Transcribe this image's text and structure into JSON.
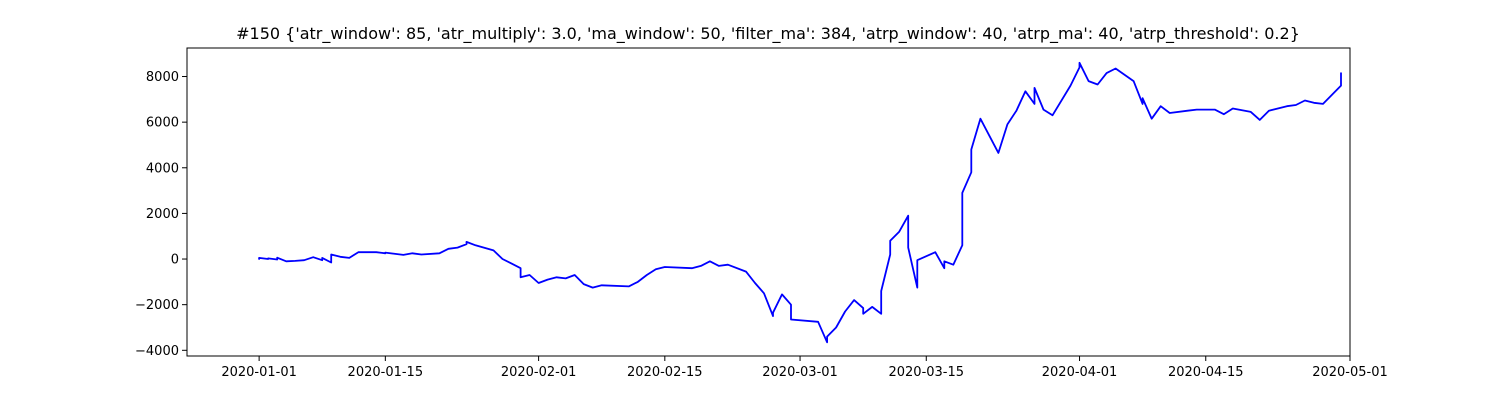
{
  "chart_data": {
    "type": "line",
    "title": "#150 {'atr_window': 85, 'atr_multiply': 3.0, 'ma_window': 50, 'filter_ma': 384, 'atrp_window': 40, 'atrp_ma': 40, 'atrp_threshold': 0.2}",
    "xlabel": "",
    "ylabel": "",
    "x_axis_type": "date",
    "xlim": [
      "2019-12-24",
      "2020-05-01"
    ],
    "ylim": [
      -4250,
      9250
    ],
    "x_ticks": [
      "2020-01-01",
      "2020-01-15",
      "2020-02-01",
      "2020-02-15",
      "2020-03-01",
      "2020-03-15",
      "2020-04-01",
      "2020-04-15",
      "2020-05-01"
    ],
    "y_ticks": [
      -4000,
      -2000,
      0,
      2000,
      4000,
      6000,
      8000
    ],
    "grid": false,
    "legend": "none",
    "series": [
      {
        "color": "#0000ff",
        "points": [
          [
            "2020-01-01",
            0
          ],
          [
            "2020-01-01",
            50
          ],
          [
            "2020-01-02",
            0
          ],
          [
            "2020-01-02",
            30
          ],
          [
            "2020-01-03",
            -20
          ],
          [
            "2020-01-03",
            60
          ],
          [
            "2020-01-04",
            -100
          ],
          [
            "2020-01-05",
            -80
          ],
          [
            "2020-01-06",
            -50
          ],
          [
            "2020-01-07",
            80
          ],
          [
            "2020-01-08",
            -50
          ],
          [
            "2020-01-08",
            50
          ],
          [
            "2020-01-09",
            -150
          ],
          [
            "2020-01-09",
            200
          ],
          [
            "2020-01-10",
            100
          ],
          [
            "2020-01-11",
            50
          ],
          [
            "2020-01-12",
            300
          ],
          [
            "2020-01-14",
            300
          ],
          [
            "2020-01-15",
            250
          ],
          [
            "2020-01-15",
            280
          ],
          [
            "2020-01-17",
            180
          ],
          [
            "2020-01-18",
            250
          ],
          [
            "2020-01-19",
            200
          ],
          [
            "2020-01-21",
            250
          ],
          [
            "2020-01-22",
            450
          ],
          [
            "2020-01-23",
            500
          ],
          [
            "2020-01-24",
            650
          ],
          [
            "2020-01-24",
            750
          ],
          [
            "2020-01-25",
            600
          ],
          [
            "2020-01-27",
            380
          ],
          [
            "2020-01-28",
            0
          ],
          [
            "2020-01-29",
            -200
          ],
          [
            "2020-01-30",
            -400
          ],
          [
            "2020-01-30",
            -800
          ],
          [
            "2020-01-31",
            -700
          ],
          [
            "2020-02-01",
            -1050
          ],
          [
            "2020-02-02",
            -900
          ],
          [
            "2020-02-03",
            -800
          ],
          [
            "2020-02-04",
            -850
          ],
          [
            "2020-02-05",
            -700
          ],
          [
            "2020-02-06",
            -1100
          ],
          [
            "2020-02-07",
            -1250
          ],
          [
            "2020-02-08",
            -1150
          ],
          [
            "2020-02-11",
            -1200
          ],
          [
            "2020-02-12",
            -1000
          ],
          [
            "2020-02-13",
            -700
          ],
          [
            "2020-02-14",
            -450
          ],
          [
            "2020-02-15",
            -350
          ],
          [
            "2020-02-18",
            -400
          ],
          [
            "2020-02-19",
            -300
          ],
          [
            "2020-02-20",
            -100
          ],
          [
            "2020-02-21",
            -300
          ],
          [
            "2020-02-22",
            -250
          ],
          [
            "2020-02-24",
            -550
          ],
          [
            "2020-02-25",
            -1050
          ],
          [
            "2020-02-26",
            -1500
          ],
          [
            "2020-02-27",
            -2500
          ],
          [
            "2020-02-27",
            -2350
          ],
          [
            "2020-02-28",
            -1550
          ],
          [
            "2020-02-29",
            -2000
          ],
          [
            "2020-02-29",
            -2650
          ],
          [
            "2020-03-03",
            -2750
          ],
          [
            "2020-03-04",
            -3650
          ],
          [
            "2020-03-04",
            -3400
          ],
          [
            "2020-03-05",
            -3000
          ],
          [
            "2020-03-06",
            -2300
          ],
          [
            "2020-03-07",
            -1800
          ],
          [
            "2020-03-08",
            -2150
          ],
          [
            "2020-03-08",
            -2400
          ],
          [
            "2020-03-09",
            -2100
          ],
          [
            "2020-03-10",
            -2400
          ],
          [
            "2020-03-10",
            -1400
          ],
          [
            "2020-03-11",
            200
          ],
          [
            "2020-03-11",
            800
          ],
          [
            "2020-03-12",
            1200
          ],
          [
            "2020-03-13",
            1900
          ],
          [
            "2020-03-13",
            500
          ],
          [
            "2020-03-14",
            -1250
          ],
          [
            "2020-03-14",
            -50
          ],
          [
            "2020-03-16",
            300
          ],
          [
            "2020-03-17",
            -400
          ],
          [
            "2020-03-17",
            -100
          ],
          [
            "2020-03-18",
            -250
          ],
          [
            "2020-03-19",
            600
          ],
          [
            "2020-03-19",
            2900
          ],
          [
            "2020-03-20",
            3800
          ],
          [
            "2020-03-20",
            4800
          ],
          [
            "2020-03-21",
            6150
          ],
          [
            "2020-03-22",
            5400
          ],
          [
            "2020-03-23",
            4650
          ],
          [
            "2020-03-24",
            5900
          ],
          [
            "2020-03-25",
            6500
          ],
          [
            "2020-03-26",
            7350
          ],
          [
            "2020-03-27",
            6800
          ],
          [
            "2020-03-27",
            7500
          ],
          [
            "2020-03-28",
            6550
          ],
          [
            "2020-03-29",
            6300
          ],
          [
            "2020-03-31",
            7600
          ],
          [
            "2020-04-01",
            8400
          ],
          [
            "2020-04-01",
            8600
          ],
          [
            "2020-04-02",
            7800
          ],
          [
            "2020-04-03",
            7650
          ],
          [
            "2020-04-04",
            8150
          ],
          [
            "2020-04-05",
            8350
          ],
          [
            "2020-04-07",
            7800
          ],
          [
            "2020-04-08",
            6800
          ],
          [
            "2020-04-08",
            7050
          ],
          [
            "2020-04-09",
            6150
          ],
          [
            "2020-04-10",
            6700
          ],
          [
            "2020-04-11",
            6400
          ],
          [
            "2020-04-13",
            6500
          ],
          [
            "2020-04-14",
            6550
          ],
          [
            "2020-04-16",
            6550
          ],
          [
            "2020-04-17",
            6350
          ],
          [
            "2020-04-18",
            6600
          ],
          [
            "2020-04-20",
            6450
          ],
          [
            "2020-04-21",
            6100
          ],
          [
            "2020-04-22",
            6500
          ],
          [
            "2020-04-24",
            6700
          ],
          [
            "2020-04-25",
            6750
          ],
          [
            "2020-04-26",
            6950
          ],
          [
            "2020-04-27",
            6850
          ],
          [
            "2020-04-28",
            6800
          ],
          [
            "2020-04-29",
            7200
          ],
          [
            "2020-04-30",
            7600
          ],
          [
            "2020-04-30",
            8150
          ]
        ]
      }
    ]
  }
}
